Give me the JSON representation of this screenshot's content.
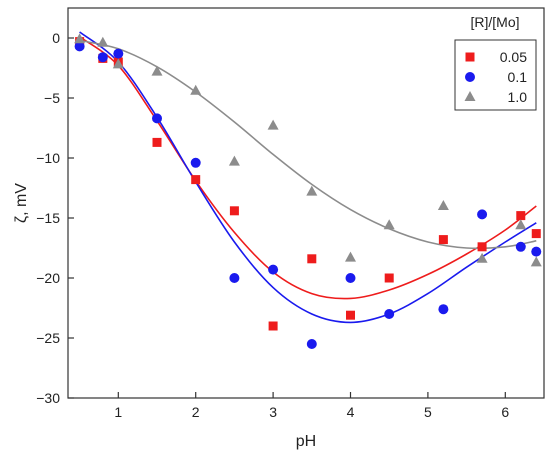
{
  "chart_data": {
    "type": "scatter",
    "xlabel": "pH",
    "ylabel": "ζ, mV",
    "xlim": [
      0.35,
      6.5
    ],
    "ylim": [
      -30,
      2.5
    ],
    "xticks": [
      1,
      2,
      3,
      4,
      5,
      6
    ],
    "yticks": [
      0,
      -5,
      -10,
      -15,
      -20,
      -25,
      -30
    ],
    "grid": false,
    "legend_title": "[R]/[Mo]",
    "legend_position": "top-right",
    "series": [
      {
        "name": "0.05",
        "color": "#ee1c1c",
        "marker": "square",
        "points": [
          [
            0.5,
            -0.3
          ],
          [
            0.8,
            -1.7
          ],
          [
            1.0,
            -2.0
          ],
          [
            1.5,
            -8.7
          ],
          [
            2.0,
            -11.8
          ],
          [
            2.5,
            -14.4
          ],
          [
            3.0,
            -24.0
          ],
          [
            3.5,
            -18.4
          ],
          [
            4.0,
            -23.1
          ],
          [
            4.5,
            -20.0
          ],
          [
            5.2,
            -16.8
          ],
          [
            5.7,
            -17.4
          ],
          [
            6.2,
            -14.8
          ],
          [
            6.4,
            -16.3
          ]
        ],
        "fit": [
          [
            0.5,
            0.1
          ],
          [
            1.0,
            -2.3
          ],
          [
            1.5,
            -6.9
          ],
          [
            2.0,
            -11.9
          ],
          [
            2.5,
            -16.2
          ],
          [
            3.0,
            -19.5
          ],
          [
            3.5,
            -21.3
          ],
          [
            4.0,
            -21.7
          ],
          [
            4.5,
            -21.0
          ],
          [
            5.0,
            -19.7
          ],
          [
            5.5,
            -18.0
          ],
          [
            6.0,
            -16.0
          ],
          [
            6.4,
            -14.0
          ]
        ]
      },
      {
        "name": "0.1",
        "color": "#1a1aee",
        "marker": "circle",
        "points": [
          [
            0.5,
            -0.7
          ],
          [
            0.8,
            -1.6
          ],
          [
            1.0,
            -1.3
          ],
          [
            1.5,
            -6.7
          ],
          [
            2.0,
            -10.4
          ],
          [
            2.5,
            -20.0
          ],
          [
            3.0,
            -19.3
          ],
          [
            3.5,
            -25.5
          ],
          [
            4.0,
            -20.0
          ],
          [
            4.5,
            -23.0
          ],
          [
            5.2,
            -22.6
          ],
          [
            5.7,
            -14.7
          ],
          [
            6.2,
            -17.4
          ],
          [
            6.4,
            -17.8
          ]
        ],
        "fit": [
          [
            0.5,
            0.5
          ],
          [
            1.0,
            -2.0
          ],
          [
            1.5,
            -6.6
          ],
          [
            2.0,
            -12.0
          ],
          [
            2.5,
            -17.0
          ],
          [
            3.0,
            -20.8
          ],
          [
            3.5,
            -23.0
          ],
          [
            4.0,
            -23.7
          ],
          [
            4.5,
            -23.0
          ],
          [
            5.0,
            -21.3
          ],
          [
            5.5,
            -19.1
          ],
          [
            6.0,
            -17.0
          ],
          [
            6.4,
            -15.4
          ]
        ]
      },
      {
        "name": "1.0",
        "color": "#8c8c8c",
        "marker": "triangle",
        "points": [
          [
            0.5,
            -0.1
          ],
          [
            0.8,
            -0.4
          ],
          [
            1.0,
            -2.2
          ],
          [
            1.5,
            -2.8
          ],
          [
            2.0,
            -4.4
          ],
          [
            2.5,
            -10.3
          ],
          [
            3.0,
            -7.3
          ],
          [
            3.5,
            -12.8
          ],
          [
            4.0,
            -18.3
          ],
          [
            4.5,
            -15.6
          ],
          [
            5.2,
            -14.0
          ],
          [
            5.7,
            -18.4
          ],
          [
            6.2,
            -15.6
          ],
          [
            6.4,
            -18.7
          ]
        ],
        "fit": [
          [
            0.5,
            -0.2
          ],
          [
            1.0,
            -0.9
          ],
          [
            1.5,
            -2.4
          ],
          [
            2.0,
            -4.5
          ],
          [
            2.5,
            -7.0
          ],
          [
            3.0,
            -9.7
          ],
          [
            3.5,
            -12.2
          ],
          [
            4.0,
            -14.3
          ],
          [
            4.5,
            -15.9
          ],
          [
            5.0,
            -17.0
          ],
          [
            5.5,
            -17.5
          ],
          [
            6.0,
            -17.4
          ],
          [
            6.4,
            -16.9
          ]
        ]
      }
    ]
  }
}
